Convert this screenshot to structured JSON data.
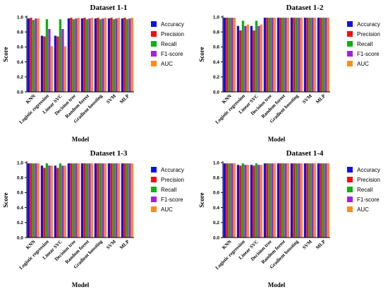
{
  "colors": {
    "Accuracy": "#1010e8",
    "Precision": "#ee1010",
    "Recall": "#10b010",
    "F1-score": "#a020e8",
    "AUC": "#ff8c1a"
  },
  "chart_data": [
    {
      "type": "bar",
      "title": "Dataset 1-1",
      "xlabel": "Model",
      "ylabel": "Score",
      "ylim": [
        0,
        1
      ],
      "yticks": [
        "0.0",
        "0.2",
        "0.4",
        "0.6",
        "0.8",
        "1.0"
      ],
      "legend_position": "right",
      "categories": [
        "KNN",
        "Logistic regression",
        "Linear SVC",
        "Decision tree",
        "Random forest",
        "Gradient boosting",
        "SVM",
        "MLP"
      ],
      "series": [
        {
          "name": "Accuracy",
          "values": [
            0.98,
            0.75,
            0.75,
            0.98,
            0.98,
            0.98,
            0.98,
            0.98
          ]
        },
        {
          "name": "Precision",
          "values": [
            0.99,
            0.74,
            0.74,
            0.99,
            0.99,
            0.99,
            0.99,
            0.99
          ]
        },
        {
          "name": "Recall",
          "values": [
            0.96,
            0.97,
            0.97,
            0.97,
            0.97,
            0.97,
            0.97,
            0.97
          ]
        },
        {
          "name": "F1-score",
          "values": [
            0.98,
            0.84,
            0.84,
            0.98,
            0.98,
            0.98,
            0.98,
            0.98
          ]
        },
        {
          "name": "AUC",
          "values": [
            0.98,
            0.61,
            0.61,
            0.99,
            0.99,
            0.99,
            0.99,
            0.99
          ]
        }
      ]
    },
    {
      "type": "bar",
      "title": "Dataset 1-2",
      "xlabel": "Model",
      "ylabel": "Score",
      "ylim": [
        0,
        1
      ],
      "yticks": [
        "0.0",
        "0.2",
        "0.4",
        "0.6",
        "0.8",
        "1.0"
      ],
      "legend_position": "right",
      "categories": [
        "KNN",
        "Logistic regression",
        "Linear SVC",
        "Decision tree",
        "Random forest",
        "Gradient boosting",
        "SVM",
        "MLP"
      ],
      "series": [
        {
          "name": "Accuracy",
          "values": [
            0.99,
            0.88,
            0.88,
            0.99,
            0.99,
            0.99,
            0.99,
            0.99
          ]
        },
        {
          "name": "Precision",
          "values": [
            0.99,
            0.82,
            0.82,
            0.99,
            0.99,
            0.99,
            0.99,
            0.99
          ]
        },
        {
          "name": "Recall",
          "values": [
            0.99,
            0.95,
            0.95,
            0.99,
            0.99,
            0.99,
            0.99,
            0.99
          ]
        },
        {
          "name": "F1-score",
          "values": [
            0.99,
            0.88,
            0.88,
            0.99,
            0.99,
            0.99,
            0.99,
            0.99
          ]
        },
        {
          "name": "AUC",
          "values": [
            0.99,
            0.9,
            0.9,
            0.99,
            0.99,
            0.99,
            0.99,
            0.99
          ]
        }
      ]
    },
    {
      "type": "bar",
      "title": "Dataset 1-3",
      "xlabel": "Model",
      "ylabel": "Score",
      "ylim": [
        0,
        1
      ],
      "yticks": [
        "0.0",
        "0.2",
        "0.4",
        "0.6",
        "0.8",
        "1.0"
      ],
      "legend_position": "right",
      "categories": [
        "KNN",
        "Logistic regression",
        "Linear SVC",
        "Decision tree",
        "Random forest",
        "Gradient boosting",
        "SVM",
        "MLP"
      ],
      "series": [
        {
          "name": "Accuracy",
          "values": [
            0.99,
            0.96,
            0.96,
            0.99,
            0.99,
            0.99,
            0.99,
            0.99
          ]
        },
        {
          "name": "Precision",
          "values": [
            0.99,
            0.93,
            0.93,
            0.99,
            0.99,
            0.99,
            0.99,
            0.99
          ]
        },
        {
          "name": "Recall",
          "values": [
            0.99,
            0.99,
            0.99,
            0.99,
            0.99,
            0.99,
            0.99,
            0.99
          ]
        },
        {
          "name": "F1-score",
          "values": [
            0.99,
            0.96,
            0.96,
            0.99,
            0.99,
            0.99,
            0.99,
            0.99
          ]
        },
        {
          "name": "AUC",
          "values": [
            0.99,
            0.96,
            0.96,
            0.99,
            0.99,
            0.99,
            0.99,
            0.99
          ]
        }
      ]
    },
    {
      "type": "bar",
      "title": "Dataset 1-4",
      "xlabel": "Model",
      "ylabel": "Score",
      "ylim": [
        0,
        1
      ],
      "yticks": [
        "0.0",
        "0.2",
        "0.4",
        "0.6",
        "0.8",
        "1.0"
      ],
      "legend_position": "right",
      "categories": [
        "KNN",
        "Logistic regression",
        "Linear SVC",
        "Decision tree",
        "Random forest",
        "Gradient boosting",
        "SVM",
        "MLP"
      ],
      "series": [
        {
          "name": "Accuracy",
          "values": [
            0.99,
            0.97,
            0.97,
            0.99,
            0.99,
            0.99,
            0.99,
            0.99
          ]
        },
        {
          "name": "Precision",
          "values": [
            0.99,
            0.96,
            0.96,
            0.99,
            0.99,
            0.99,
            0.99,
            0.99
          ]
        },
        {
          "name": "Recall",
          "values": [
            0.99,
            0.99,
            0.99,
            0.99,
            0.99,
            0.99,
            0.99,
            0.99
          ]
        },
        {
          "name": "F1-score",
          "values": [
            0.99,
            0.97,
            0.97,
            0.99,
            0.99,
            0.99,
            0.99,
            0.99
          ]
        },
        {
          "name": "AUC",
          "values": [
            0.99,
            0.97,
            0.97,
            0.99,
            0.99,
            0.99,
            0.99,
            0.99
          ]
        }
      ]
    }
  ]
}
